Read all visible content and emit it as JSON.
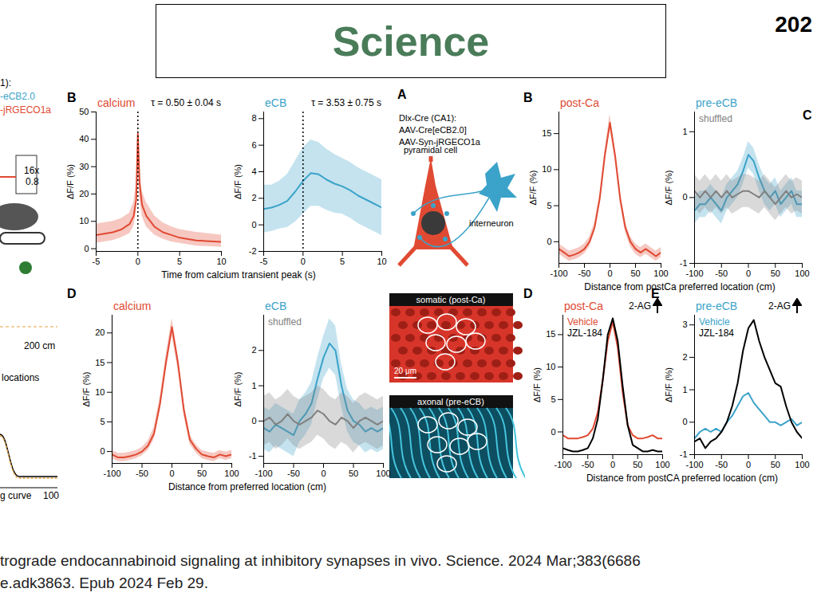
{
  "header": {
    "title": "Science",
    "corner_text": "202"
  },
  "left_fragments": [
    "1):",
    "-eCB2.0",
    "-jRGECO1a",
    "16x",
    "0.8",
    "200 cm",
    "locations",
    "g curve",
    "100"
  ],
  "diagram": {
    "panel": "A",
    "lines": [
      "Dlx-Cre (CA1):",
      "AAV-Cre[eCB2.0]",
      "AAV-Syn-jRGECO1a"
    ],
    "cell_labels": [
      "pyramidal cell",
      "interneuron"
    ],
    "images": [
      {
        "label": "somatic (post-Ca)",
        "scale_bar": "20 μm"
      },
      {
        "label": "axonal (pre-eCB)"
      }
    ]
  },
  "chart_data": [
    {
      "type": "line",
      "panel": "B",
      "title": "calcium",
      "annotation": "τ = 0.50 ± 0.04 s",
      "ylabel": "ΔF/F (%)",
      "xlabel": "Time from calcium transient peak (s)",
      "reference_line_x": 0,
      "x": [
        -5,
        -4,
        -3,
        -2,
        -1,
        -0.5,
        -0.2,
        0,
        0.2,
        0.5,
        1,
        2,
        3,
        4,
        5,
        7,
        10
      ],
      "xlim": [
        -5,
        10
      ],
      "xticks": [
        -5,
        0,
        5,
        10
      ],
      "ylim": [
        -1,
        50
      ],
      "yticks": [
        0,
        10,
        20,
        30,
        40,
        50
      ],
      "series": [
        {
          "color": "#e04a33",
          "values": [
            5,
            5.5,
            6,
            7,
            9,
            12,
            18,
            42,
            24,
            16,
            12,
            8,
            6,
            5,
            4,
            3,
            2.5
          ],
          "lower": [
            2,
            2.5,
            3,
            4,
            5.5,
            8,
            13,
            36,
            19,
            12,
            8,
            5,
            3.5,
            2.5,
            2,
            1,
            0.5
          ],
          "upper": [
            9,
            9.5,
            10,
            11,
            13,
            17,
            24,
            48,
            30,
            21,
            17,
            12,
            9.5,
            8,
            7,
            6,
            5
          ]
        }
      ]
    },
    {
      "type": "line",
      "title": "eCB",
      "annotation": "τ = 3.53 ± 0.75 s",
      "ylabel": "ΔF/F (%)",
      "reference_line_x": 0,
      "x": [
        -5,
        -4,
        -3,
        -2,
        -1,
        0,
        1,
        2,
        3,
        4,
        5,
        6,
        7,
        8,
        9,
        10
      ],
      "xlim": [
        -5,
        10
      ],
      "xticks": [
        -5,
        0,
        5,
        10
      ],
      "ylim": [
        -2,
        8.5
      ],
      "yticks": [
        -2,
        0,
        2,
        4,
        6,
        8
      ],
      "series": [
        {
          "color": "#3ba3c9",
          "values": [
            1.2,
            1.3,
            1.5,
            1.8,
            2.5,
            3.3,
            3.9,
            3.8,
            3.4,
            3.1,
            2.9,
            2.6,
            2.2,
            1.9,
            1.6,
            1.3
          ],
          "lower": [
            -0.6,
            -0.5,
            -0.3,
            -0.2,
            0.2,
            0.8,
            1.4,
            1.4,
            1.1,
            0.9,
            0.8,
            0.5,
            0.1,
            -0.2,
            -0.5,
            -0.8
          ],
          "upper": [
            3,
            3,
            3.3,
            3.8,
            4.8,
            5.8,
            6.4,
            6.2,
            5.7,
            5.3,
            5,
            4.7,
            4.3,
            4,
            3.7,
            3.4
          ]
        }
      ]
    },
    {
      "type": "line",
      "panel": "D",
      "title": "calcium",
      "ylabel": "ΔF/F (%)",
      "xlabel": "Distance from preferred location (cm)",
      "x": [
        -100,
        -90,
        -80,
        -70,
        -60,
        -50,
        -40,
        -30,
        -20,
        -10,
        0,
        10,
        20,
        30,
        40,
        50,
        60,
        70,
        80,
        90,
        100
      ],
      "xlim": [
        -100,
        100
      ],
      "xticks": [
        -100,
        -50,
        0,
        50,
        100
      ],
      "ylim": [
        -2,
        23
      ],
      "yticks": [
        0,
        5,
        10,
        15,
        20
      ],
      "series": [
        {
          "color": "#e04a33",
          "values": [
            -0.5,
            -1,
            -1,
            -0.8,
            -0.5,
            0,
            1,
            3,
            8,
            15,
            21,
            15,
            7,
            2,
            0.5,
            -0.5,
            -0.8,
            -1,
            -0.5,
            -0.8,
            -0.5
          ],
          "lower": [
            -1.2,
            -1.7,
            -1.7,
            -1.5,
            -1.2,
            -0.7,
            0.2,
            2,
            6.8,
            13.8,
            19.5,
            13.8,
            6,
            1.2,
            -0.2,
            -1.2,
            -1.5,
            -1.7,
            -1.2,
            -1.5,
            -1.2
          ],
          "upper": [
            0.2,
            -0.3,
            -0.3,
            -0.1,
            0.2,
            0.7,
            1.8,
            4,
            9.2,
            16.2,
            22.5,
            16.2,
            8,
            2.8,
            1.2,
            0.2,
            -0.1,
            -0.3,
            0.2,
            -0.1,
            0.2
          ]
        }
      ]
    },
    {
      "type": "line",
      "title": "eCB",
      "ylabel": "ΔF/F (%)",
      "legend": "top-left",
      "x": [
        -100,
        -90,
        -80,
        -70,
        -60,
        -50,
        -40,
        -30,
        -20,
        -10,
        0,
        10,
        20,
        30,
        40,
        50,
        60,
        70,
        80,
        90,
        100
      ],
      "xlim": [
        -100,
        100
      ],
      "xticks": [
        -100,
        -50,
        0,
        50,
        100
      ],
      "ylim": [
        -1.2,
        3
      ],
      "yticks": [
        -1,
        0,
        1,
        2
      ],
      "series": [
        {
          "color": "#3ba3c9",
          "values": [
            -0.2,
            -0.3,
            -0.1,
            -0.2,
            -0.3,
            -0.4,
            0,
            0.2,
            0.5,
            1.2,
            1.8,
            2.2,
            2.0,
            1.0,
            0.3,
            0,
            -0.1,
            -0.3,
            -0.2,
            -0.3,
            -0.2
          ],
          "lower": [
            -0.8,
            -0.9,
            -0.7,
            -0.8,
            -0.9,
            -1.0,
            -0.6,
            -0.4,
            -0.1,
            0.6,
            1.2,
            1.5,
            1.3,
            0.4,
            -0.3,
            -0.6,
            -0.7,
            -0.9,
            -0.8,
            -0.9,
            -0.8
          ],
          "upper": [
            0.4,
            0.3,
            0.5,
            0.4,
            0.3,
            0.2,
            0.6,
            0.8,
            1.1,
            1.8,
            2.4,
            2.9,
            2.7,
            1.6,
            0.9,
            0.6,
            0.5,
            0.3,
            0.4,
            0.3,
            0.4
          ]
        },
        {
          "name": "shuffled",
          "color": "#808080",
          "values": [
            0,
            0.1,
            -0.1,
            0,
            0.2,
            0,
            -0.1,
            0,
            0.1,
            0.3,
            0.2,
            0,
            -0.1,
            0.1,
            0,
            -0.2,
            0,
            0.1,
            0,
            -0.1,
            0
          ],
          "lower": [
            -0.7,
            -0.6,
            -0.8,
            -0.7,
            -0.5,
            -0.7,
            -0.8,
            -0.7,
            -0.6,
            -0.4,
            -0.5,
            -0.7,
            -0.8,
            -0.6,
            -0.7,
            -0.9,
            -0.7,
            -0.6,
            -0.7,
            -0.8,
            -0.7
          ],
          "upper": [
            0.7,
            0.8,
            0.6,
            0.7,
            0.9,
            0.7,
            0.6,
            0.7,
            0.8,
            1.0,
            0.9,
            0.7,
            0.6,
            0.8,
            0.7,
            0.5,
            0.7,
            0.8,
            0.7,
            0.6,
            0.7
          ]
        }
      ]
    },
    {
      "type": "line",
      "panel": "B",
      "title": "post-Ca",
      "ylabel": "ΔF/F (%)",
      "xlabel": "Distance from postCa preferred location (cm)",
      "x": [
        -100,
        -90,
        -80,
        -70,
        -60,
        -50,
        -40,
        -30,
        -20,
        -10,
        0,
        10,
        20,
        30,
        40,
        50,
        60,
        70,
        80,
        90,
        100
      ],
      "xlim": [
        -100,
        100
      ],
      "xticks": [
        -100,
        -50,
        0,
        50,
        100
      ],
      "ylim": [
        -3,
        18
      ],
      "yticks": [
        0,
        5,
        10,
        15
      ],
      "series": [
        {
          "color": "#e04a33",
          "values": [
            -1,
            -1.5,
            -2,
            -1.8,
            -1.5,
            -1,
            0,
            2,
            6,
            12,
            16.5,
            12,
            6,
            2,
            0,
            -1,
            -1.5,
            -1,
            -1.5,
            -2,
            -1.5
          ],
          "lower": [
            -1.7,
            -2.2,
            -2.7,
            -2.5,
            -2.2,
            -1.7,
            -0.7,
            1.3,
            5.3,
            11.3,
            15.5,
            11.3,
            5.3,
            1.3,
            -0.7,
            -1.7,
            -2.2,
            -1.7,
            -2.2,
            -2.7,
            -2.2
          ],
          "upper": [
            -0.3,
            -0.8,
            -1.3,
            -1.1,
            -0.8,
            -0.3,
            0.7,
            2.7,
            6.7,
            12.7,
            17.7,
            12.7,
            6.7,
            2.7,
            0.7,
            -0.3,
            -0.8,
            -0.3,
            -0.8,
            -1.3,
            -0.8
          ]
        }
      ]
    },
    {
      "type": "line",
      "panel": "C",
      "title": "pre-eCB",
      "ylabel": "ΔF/F (%)",
      "legend": "top-left",
      "x": [
        -100,
        -90,
        -80,
        -70,
        -60,
        -50,
        -40,
        -30,
        -20,
        -10,
        0,
        10,
        20,
        30,
        40,
        50,
        60,
        70,
        80,
        90,
        100
      ],
      "xlim": [
        -100,
        100
      ],
      "xticks": [
        -100,
        -50,
        0,
        50,
        100
      ],
      "ylim": [
        -1,
        1.3
      ],
      "yticks": [
        -1,
        0,
        1
      ],
      "series": [
        {
          "color": "#3ba3c9",
          "values": [
            -0.2,
            -0.1,
            -0.1,
            0,
            -0.1,
            -0.2,
            0,
            0.1,
            0.2,
            0.4,
            0.65,
            0.55,
            0.3,
            0.1,
            0,
            0.1,
            -0.1,
            0,
            0.1,
            -0.1,
            -0.1
          ],
          "lower": [
            -0.4,
            -0.3,
            -0.3,
            -0.2,
            -0.3,
            -0.4,
            -0.2,
            -0.1,
            0,
            0.2,
            0.45,
            0.35,
            0.1,
            -0.1,
            -0.2,
            -0.1,
            -0.3,
            -0.2,
            -0.1,
            -0.3,
            -0.3
          ],
          "upper": [
            0,
            0.1,
            0.1,
            0.2,
            0.1,
            0,
            0.2,
            0.3,
            0.4,
            0.6,
            0.85,
            0.75,
            0.5,
            0.3,
            0.2,
            0.3,
            0.1,
            0.2,
            0.3,
            0.1,
            0.1
          ]
        },
        {
          "name": "shuffled",
          "color": "#808080",
          "values": [
            0.1,
            0,
            0.1,
            0,
            0.1,
            0,
            0.1,
            0,
            0.05,
            0.1,
            0.1,
            0.05,
            0,
            0.1,
            0,
            -0.1,
            0,
            0.1,
            0,
            0.05,
            0
          ],
          "lower": [
            -0.15,
            -0.25,
            -0.15,
            -0.25,
            -0.15,
            -0.25,
            -0.15,
            -0.25,
            -0.2,
            -0.15,
            -0.15,
            -0.2,
            -0.25,
            -0.15,
            -0.25,
            -0.35,
            -0.25,
            -0.15,
            -0.25,
            -0.2,
            -0.25
          ],
          "upper": [
            0.35,
            0.25,
            0.35,
            0.25,
            0.35,
            0.25,
            0.35,
            0.25,
            0.3,
            0.35,
            0.35,
            0.3,
            0.25,
            0.35,
            0.25,
            0.15,
            0.25,
            0.35,
            0.25,
            0.3,
            0.25
          ]
        }
      ]
    },
    {
      "type": "line",
      "panel": "D",
      "title": "post-Ca",
      "annotation": "2-AG",
      "legend": "top-left",
      "ylabel": "ΔF/F (%)",
      "xlabel": "Distance from postCA preferred location (cm)",
      "x": [
        -100,
        -90,
        -80,
        -70,
        -60,
        -50,
        -40,
        -30,
        -20,
        -10,
        0,
        10,
        20,
        30,
        40,
        50,
        60,
        70,
        80,
        90,
        100
      ],
      "xlim": [
        -100,
        100
      ],
      "xticks": [
        -100,
        -50,
        0,
        50,
        100
      ],
      "ylim": [
        -3.5,
        18
      ],
      "yticks": [
        0,
        5,
        10,
        15
      ],
      "series": [
        {
          "name": "Vehicle",
          "color": "#e04a33",
          "values": [
            -0.5,
            -1,
            -1,
            -1,
            -0.8,
            -0.5,
            0.5,
            3,
            8,
            14,
            17,
            13,
            6,
            1,
            -0.5,
            -1,
            -1,
            -0.8,
            -0.5,
            -1,
            -1
          ]
        },
        {
          "name": "JZL-184",
          "color": "#000000",
          "values": [
            -2.5,
            -2.8,
            -3,
            -3,
            -2.8,
            -2.5,
            -1,
            2,
            8,
            15,
            17.5,
            14,
            7,
            1,
            -2,
            -2.5,
            -3,
            -3,
            -2.8,
            -3,
            -3
          ]
        }
      ]
    },
    {
      "type": "line",
      "panel": "E",
      "title": "pre-eCB",
      "annotation": "2-AG",
      "legend": "top-left",
      "ylabel": "ΔF/F (%)",
      "x": [
        -100,
        -90,
        -80,
        -70,
        -60,
        -50,
        -40,
        -30,
        -20,
        -10,
        0,
        10,
        20,
        30,
        40,
        50,
        60,
        70,
        80,
        90,
        100
      ],
      "xlim": [
        -100,
        100
      ],
      "xticks": [
        -100,
        -50,
        0,
        50,
        100
      ],
      "ylim": [
        -1,
        3.3
      ],
      "yticks": [
        -1,
        0,
        1,
        2,
        3
      ],
      "series": [
        {
          "name": "Vehicle",
          "color": "#3ba3c9",
          "values": [
            -0.5,
            -0.3,
            -0.2,
            -0.3,
            -0.2,
            -0.3,
            0,
            0.2,
            0.5,
            0.8,
            0.9,
            0.6,
            0.4,
            0.2,
            0,
            0,
            -0.1,
            0,
            0.1,
            -0.1,
            0
          ]
        },
        {
          "name": "JZL-184",
          "color": "#000000",
          "values": [
            -0.6,
            -0.5,
            -0.8,
            -0.6,
            -0.5,
            -0.3,
            0,
            0.5,
            1.2,
            2.2,
            2.9,
            3.15,
            2.5,
            2.0,
            1.6,
            1.2,
            1.1,
            0.5,
            0,
            -0.3,
            -0.5
          ]
        }
      ]
    }
  ],
  "caption": [
    "trograde endocannabinoid signaling at inhibitory synapses in vivo. Science. 2024 Mar;383(6686",
    "e.adk3863. Epub 2024 Feb 29."
  ]
}
